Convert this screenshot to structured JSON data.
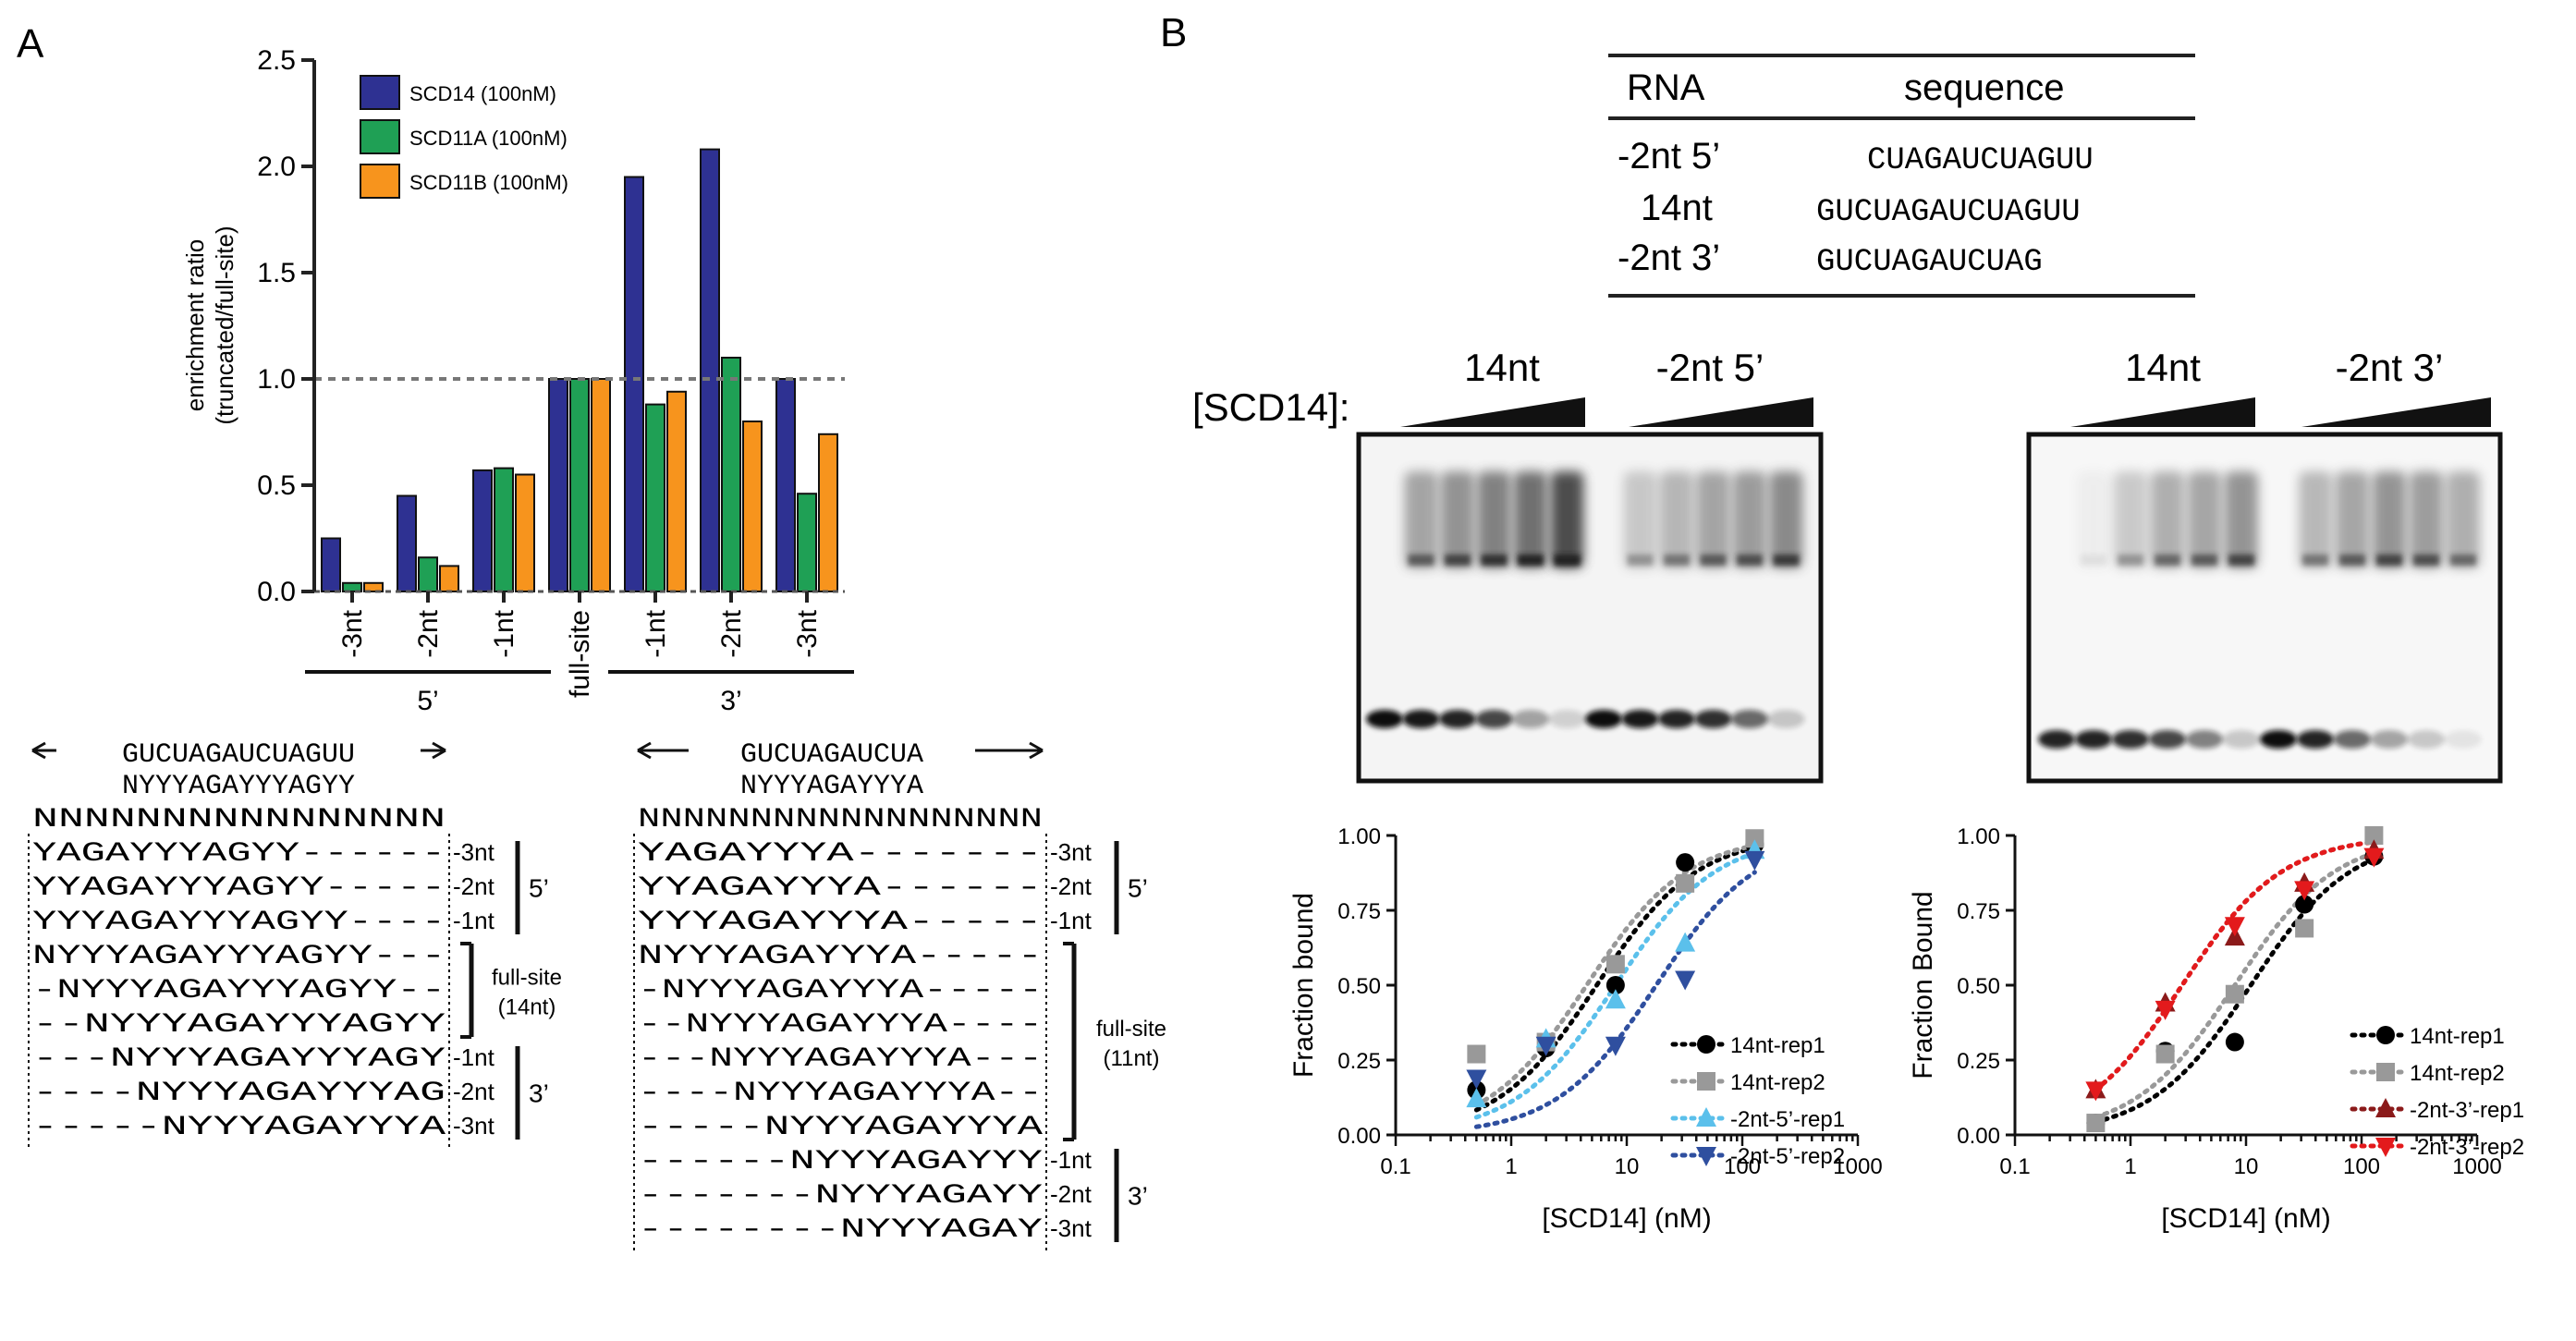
{
  "panels": {
    "a": {
      "label": "A",
      "chart_data": {
        "type": "bar",
        "categories": [
          "-3nt",
          "-2nt",
          "-1nt",
          "full-site",
          "-1nt",
          "-2nt",
          "-3nt"
        ],
        "groups": [
          {
            "label": "5’",
            "categories": [
              0,
              1,
              2
            ]
          },
          {
            "label": "3’",
            "categories": [
              4,
              5,
              6
            ]
          }
        ],
        "series": [
          {
            "name": "SCD14 (100nM)",
            "color": "#2e3192",
            "values": [
              0.25,
              0.45,
              0.57,
              1.0,
              1.95,
              2.08,
              1.0
            ]
          },
          {
            "name": "SCD11A (100nM)",
            "color": "#1fa055",
            "values": [
              0.04,
              0.16,
              0.58,
              1.0,
              0.88,
              1.1,
              0.46
            ]
          },
          {
            "name": "SCD11B (100nM)",
            "color": "#f7941d",
            "values": [
              0.04,
              0.12,
              0.55,
              1.0,
              0.94,
              0.8,
              0.74
            ]
          }
        ],
        "ylabel_lines": [
          "enrichment ratio",
          "(truncated/full-site)"
        ],
        "ylim": [
          0,
          2.5
        ],
        "yticks": [
          "0.0",
          "0.5",
          "1.0",
          "1.5",
          "2.0",
          "2.5"
        ],
        "reference_line": 1.0,
        "legend": "top-left"
      },
      "sequence_diagrams": [
        {
          "top": "GUCUAGAUCUAGUU",
          "consensus": "NYYYAGAYYYAGYY",
          "random": "NNNNNNNNNNNNNNNN",
          "rows": [
            {
              "text": "YAGAYYYAGYY------",
              "label": "-3nt"
            },
            {
              "text": "YYAGAYYYAGYY-----",
              "label": "-2nt"
            },
            {
              "text": "YYYAGAYYYAGYY----",
              "label": "-1nt"
            },
            {
              "text": "NYYYAGAYYYAGYY---",
              "label": ""
            },
            {
              "text": "-NYYYAGAYYYAGYY--",
              "label": ""
            },
            {
              "text": "--NYYYAGAYYYAGYY",
              "label": ""
            },
            {
              "text": "---NYYYAGAYYYAGY",
              "label": "-1nt"
            },
            {
              "text": "----NYYYAGAYYYAG",
              "label": "-2nt"
            },
            {
              "text": "-----NYYYAGAYYYA",
              "label": "-3nt"
            }
          ],
          "bracket_5": "5’",
          "bracket_full_lines": [
            "full-site",
            "(14nt)"
          ],
          "bracket_3": "3’"
        },
        {
          "top": "GUCUAGAUCUA",
          "consensus": "NYYYAGAYYYA",
          "random": "NNNNNNNNNNNNNNNNNN",
          "rows": [
            {
              "text": "YAGAYYYA-------",
              "label": "-3nt"
            },
            {
              "text": "YYAGAYYYA------",
              "label": "-2nt"
            },
            {
              "text": "YYYAGAYYYA-----",
              "label": "-1nt"
            },
            {
              "text": "NYYYAGAYYYA-----",
              "label": ""
            },
            {
              "text": "-NYYYAGAYYYA-----",
              "label": ""
            },
            {
              "text": "--NYYYAGAYYYA----",
              "label": ""
            },
            {
              "text": "---NYYYAGAYYYA---",
              "label": ""
            },
            {
              "text": "----NYYYAGAYYYA--",
              "label": ""
            },
            {
              "text": "-----NYYYAGAYYYA",
              "label": ""
            },
            {
              "text": "------NYYYAGAYYY",
              "label": "-1nt"
            },
            {
              "text": "-------NYYYAGAYY",
              "label": "-2nt"
            },
            {
              "text": "--------NYYYAGAY",
              "label": "-3nt"
            }
          ],
          "bracket_5": "5’",
          "bracket_full_lines": [
            "full-site",
            "(11nt)"
          ],
          "bracket_3": "3’"
        }
      ]
    },
    "b": {
      "label": "B",
      "sequence_table": {
        "headers": [
          "RNA",
          "sequence"
        ],
        "rows": [
          {
            "name": "-2nt 5’",
            "seq": "CUAGAUCUAGUU"
          },
          {
            "name": "14nt",
            "seq": "GUCUAGAUCUAGUU"
          },
          {
            "name": "-2nt 3’",
            "seq": "GUCUAGAUCUAG"
          }
        ]
      },
      "gels": {
        "row_label": "[SCD14]:",
        "left": {
          "lanes": [
            "14nt",
            "-2nt 5’"
          ]
        },
        "right": {
          "lanes": [
            "14nt",
            "-2nt 3’"
          ]
        }
      },
      "chart_data": [
        {
          "type": "scatter",
          "scale": "log-x",
          "xlabel": "[SCD14] (nM)",
          "ylabel": "Fraction bound",
          "xlim": [
            0.1,
            1000
          ],
          "ylim": [
            0,
            1
          ],
          "xticks": [
            "0.1",
            "1",
            "10",
            "100",
            "1000"
          ],
          "yticks": [
            "0.00",
            "0.25",
            "0.50",
            "0.75",
            "1.00"
          ],
          "legend": "bottom-right",
          "series": [
            {
              "name": "14nt-rep1",
              "color": "#000000",
              "marker": "circle",
              "x": [
                0.5,
                2,
                8,
                32,
                128
              ],
              "y": [
                0.15,
                0.29,
                0.5,
                0.91,
                0.97
              ],
              "fit_kd": 5.5
            },
            {
              "name": "14nt-rep2",
              "color": "#999999",
              "marker": "square",
              "x": [
                0.5,
                2,
                8,
                32,
                128
              ],
              "y": [
                0.27,
                0.31,
                0.57,
                0.84,
                0.99
              ],
              "fit_kd": 4.5
            },
            {
              "name": "-2nt-5’-rep1",
              "color": "#5bc0eb",
              "marker": "triangle-up",
              "x": [
                0.5,
                2,
                8,
                32,
                128
              ],
              "y": [
                0.12,
                0.32,
                0.45,
                0.64,
                0.95
              ],
              "fit_kd": 8
            },
            {
              "name": "-2nt-5’-rep2",
              "color": "#2f4f9f",
              "marker": "triangle-down",
              "x": [
                0.5,
                2,
                8,
                32,
                128
              ],
              "y": [
                0.19,
                0.3,
                0.3,
                0.52,
                0.92
              ],
              "fit_kd": 18
            }
          ]
        },
        {
          "type": "scatter",
          "scale": "log-x",
          "xlabel": "[SCD14] (nM)",
          "ylabel": "Fraction Bound",
          "xlim": [
            0.1,
            1000
          ],
          "ylim": [
            0,
            1
          ],
          "xticks": [
            "0.1",
            "1",
            "10",
            "100",
            "1000"
          ],
          "yticks": [
            "0.00",
            "0.25",
            "0.50",
            "0.75",
            "1.00"
          ],
          "legend": "bottom-right",
          "series": [
            {
              "name": "14nt-rep1",
              "color": "#000000",
              "marker": "circle",
              "x": [
                0.5,
                2,
                8,
                32,
                128
              ],
              "y": [
                0.04,
                0.28,
                0.31,
                0.77,
                0.93
              ],
              "fit_kd": 11
            },
            {
              "name": "14nt-rep2",
              "color": "#999999",
              "marker": "square",
              "x": [
                0.5,
                2,
                8,
                32,
                128
              ],
              "y": [
                0.04,
                0.27,
                0.47,
                0.69,
                1.0
              ],
              "fit_kd": 8
            },
            {
              "name": "-2nt-3’-rep1",
              "color": "#8b1a1a",
              "marker": "triangle-up",
              "x": [
                0.5,
                2,
                8,
                32,
                128
              ],
              "y": [
                0.15,
                0.44,
                0.66,
                0.84,
                0.95
              ],
              "fit_kd": 2.8
            },
            {
              "name": "-2nt-3’-rep2",
              "color": "#e31a1c",
              "marker": "triangle-down",
              "x": [
                0.5,
                2,
                8,
                32,
                128
              ],
              "y": [
                0.15,
                0.42,
                0.7,
                0.82,
                0.93
              ],
              "fit_kd": 2.8
            }
          ]
        }
      ]
    }
  }
}
